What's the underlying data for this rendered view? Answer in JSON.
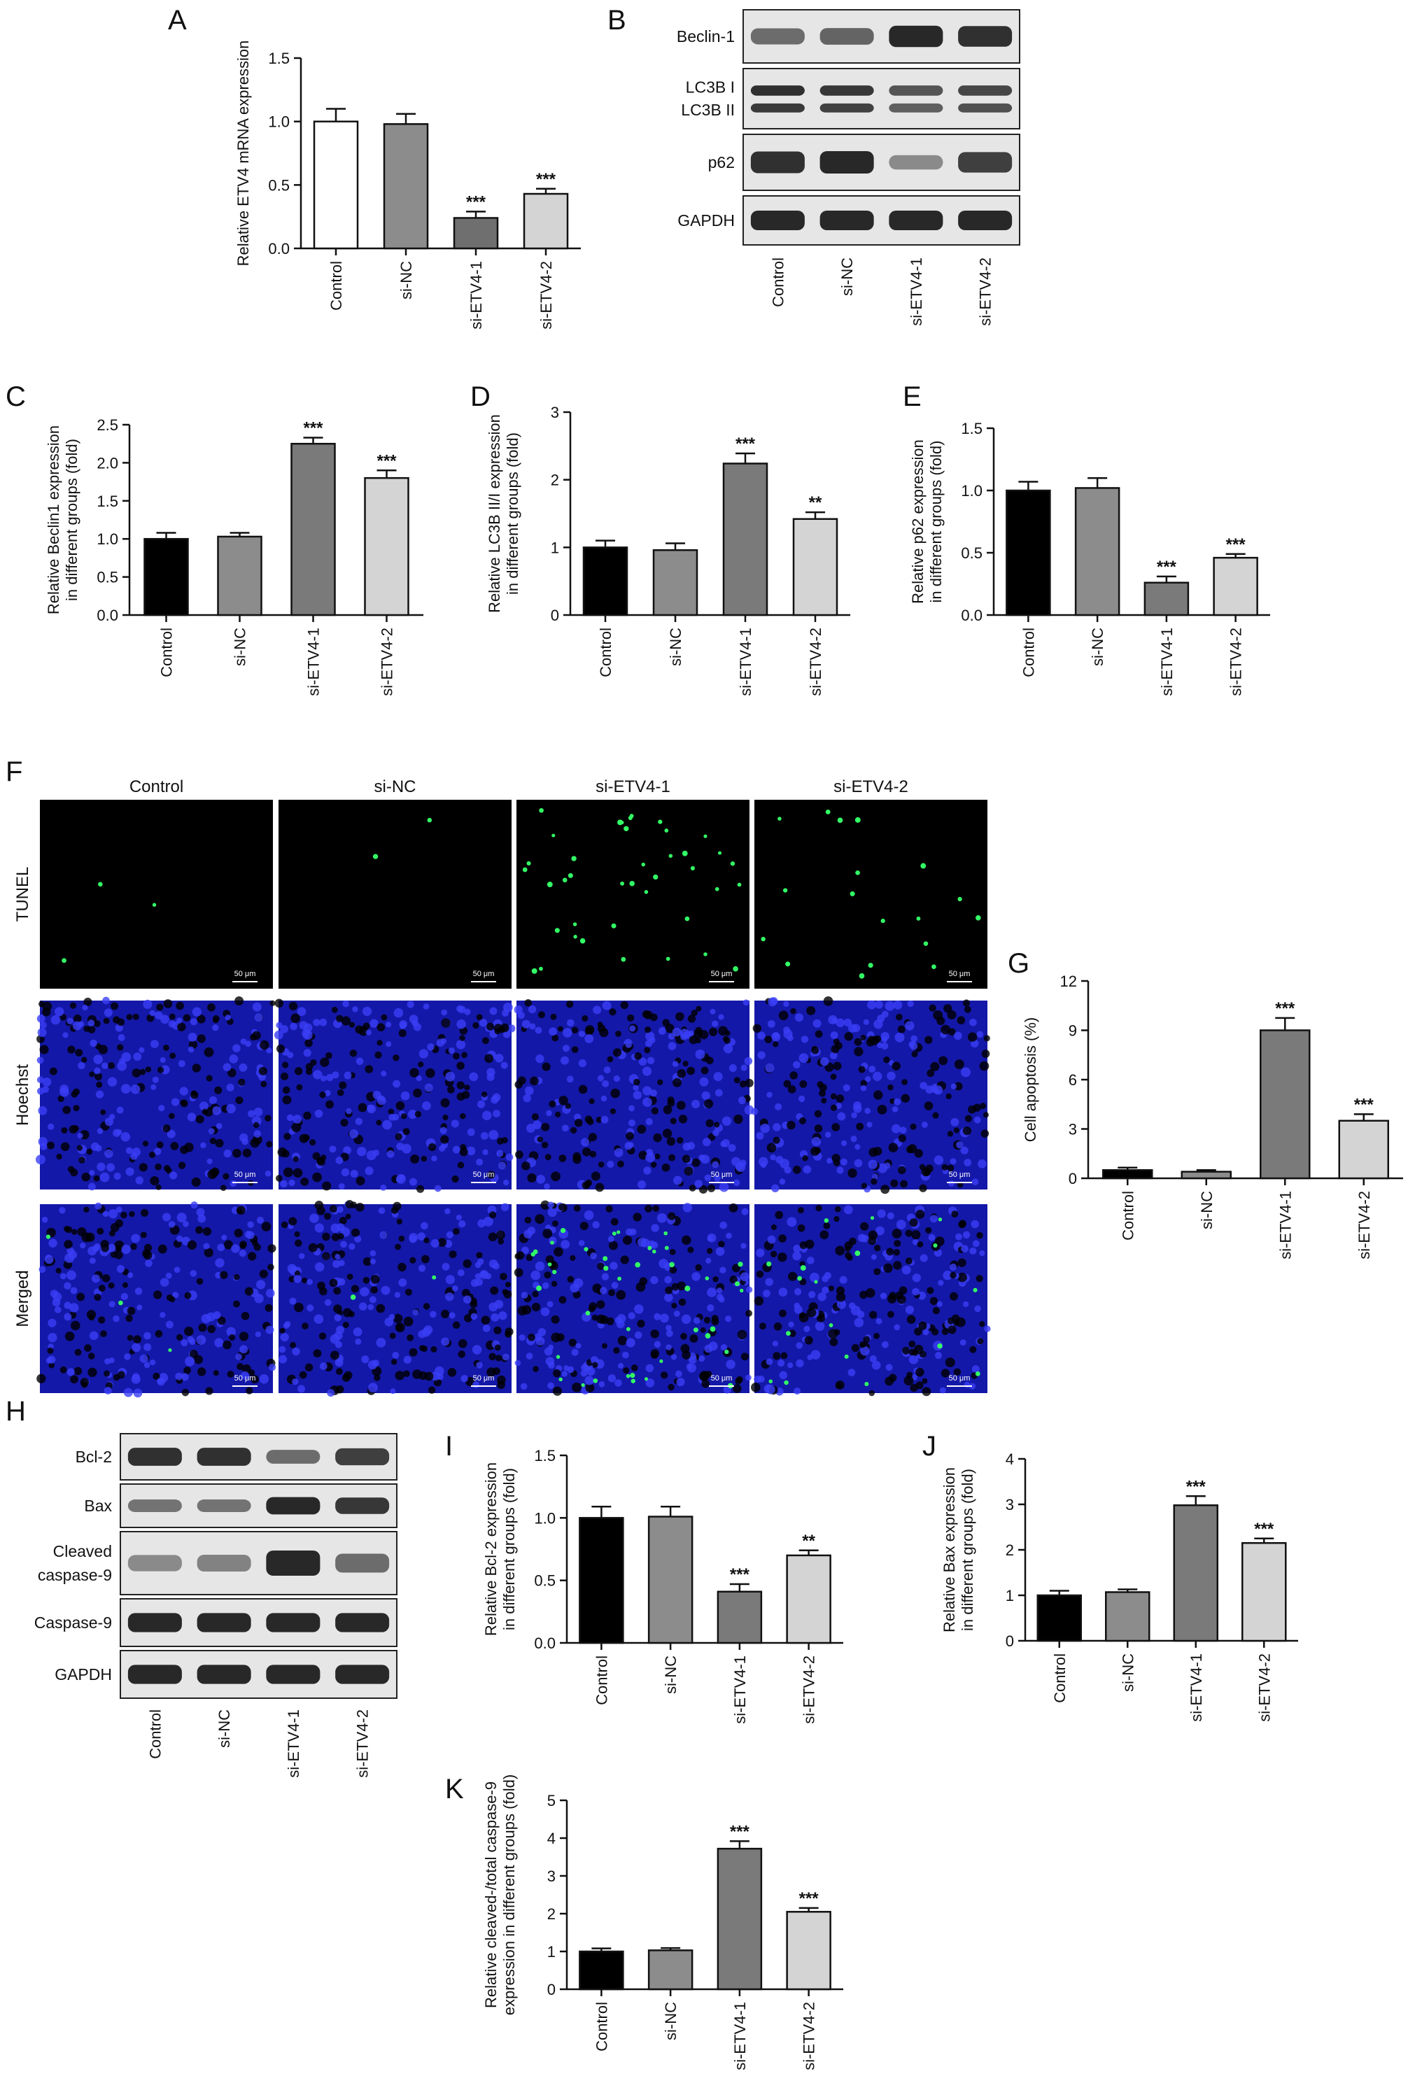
{
  "panel_letters": [
    "A",
    "B",
    "C",
    "D",
    "E",
    "F",
    "G",
    "H",
    "I",
    "J",
    "K"
  ],
  "groups": [
    "Control",
    "si-NC",
    "si-ETV4-1",
    "si-ETV4-2"
  ],
  "colors": {
    "white": "#ffffff",
    "light_gray": "#d4d4d4",
    "mid_gray": "#8c8c8c",
    "dark_gray": "#7a7a7a",
    "black": "#000000",
    "fluor_green": "#33ff66",
    "nuclei_blue": "#2a2fe8"
  },
  "chart_data": [
    {
      "panel": "A",
      "type": "bar",
      "categories": [
        "Control",
        "si-NC",
        "si-ETV4-1",
        "si-ETV4-2"
      ],
      "values": [
        1.0,
        0.98,
        0.24,
        0.43
      ],
      "errors": [
        0.1,
        0.08,
        0.05,
        0.04
      ],
      "significance": [
        "",
        "",
        "***",
        "***"
      ],
      "bar_colors": [
        "#ffffff",
        "#8c8c8c",
        "#6f6f6f",
        "#d4d4d4"
      ],
      "ylabel": "Relative ETV4 mRNA expression",
      "ylabel2": "",
      "ylim": [
        0,
        1.5
      ],
      "yticks": [
        "0.0",
        "0.5",
        "1.0",
        "1.5"
      ],
      "ytick_values": [
        0,
        0.5,
        1.0,
        1.5
      ]
    },
    {
      "panel": "C",
      "type": "bar",
      "categories": [
        "Control",
        "si-NC",
        "si-ETV4-1",
        "si-ETV4-2"
      ],
      "values": [
        1.0,
        1.03,
        2.25,
        1.8
      ],
      "errors": [
        0.08,
        0.05,
        0.08,
        0.1
      ],
      "significance": [
        "",
        "",
        "***",
        "***"
      ],
      "bar_colors": [
        "#000000",
        "#8c8c8c",
        "#7a7a7a",
        "#d4d4d4"
      ],
      "ylabel": "Relative Beclin1 expression",
      "ylabel2": "in different groups (fold)",
      "ylim": [
        0,
        2.5
      ],
      "yticks": [
        "0.0",
        "0.5",
        "1.0",
        "1.5",
        "2.0",
        "2.5"
      ],
      "ytick_values": [
        0,
        0.5,
        1.0,
        1.5,
        2.0,
        2.5
      ]
    },
    {
      "panel": "D",
      "type": "bar",
      "categories": [
        "Control",
        "si-NC",
        "si-ETV4-1",
        "si-ETV4-2"
      ],
      "values": [
        1.0,
        0.96,
        2.24,
        1.42
      ],
      "errors": [
        0.1,
        0.1,
        0.15,
        0.1
      ],
      "significance": [
        "",
        "",
        "***",
        "**"
      ],
      "bar_colors": [
        "#000000",
        "#8c8c8c",
        "#7a7a7a",
        "#d4d4d4"
      ],
      "ylabel": "Relative LC3B II/I expression",
      "ylabel2": "in different groups (fold)",
      "ylim": [
        0,
        3
      ],
      "yticks": [
        "0",
        "1",
        "2",
        "3"
      ],
      "ytick_values": [
        0,
        1,
        2,
        3
      ]
    },
    {
      "panel": "E",
      "type": "bar",
      "categories": [
        "Control",
        "si-NC",
        "si-ETV4-1",
        "si-ETV4-2"
      ],
      "values": [
        1.0,
        1.02,
        0.26,
        0.46
      ],
      "errors": [
        0.07,
        0.08,
        0.05,
        0.03
      ],
      "significance": [
        "",
        "",
        "***",
        "***"
      ],
      "bar_colors": [
        "#000000",
        "#8c8c8c",
        "#7a7a7a",
        "#d4d4d4"
      ],
      "ylabel": "Relative p62 expression",
      "ylabel2": "in different groups (fold)",
      "ylim": [
        0,
        1.5
      ],
      "yticks": [
        "0.0",
        "0.5",
        "1.0",
        "1.5"
      ],
      "ytick_values": [
        0,
        0.5,
        1.0,
        1.5
      ]
    },
    {
      "panel": "G",
      "type": "bar",
      "categories": [
        "Control",
        "si-NC",
        "si-ETV4-1",
        "si-ETV4-2"
      ],
      "values": [
        0.5,
        0.4,
        9.0,
        3.5
      ],
      "errors": [
        0.15,
        0.1,
        0.75,
        0.4
      ],
      "significance": [
        "",
        "",
        "***",
        "***"
      ],
      "bar_colors": [
        "#000000",
        "#8c8c8c",
        "#7a7a7a",
        "#d4d4d4"
      ],
      "ylabel": "Cell apoptosis (%)",
      "ylabel2": "",
      "ylim": [
        0,
        12
      ],
      "yticks": [
        "0",
        "3",
        "6",
        "9",
        "12"
      ],
      "ytick_values": [
        0,
        3,
        6,
        9,
        12
      ]
    },
    {
      "panel": "I",
      "type": "bar",
      "categories": [
        "Control",
        "si-NC",
        "si-ETV4-1",
        "si-ETV4-2"
      ],
      "values": [
        1.0,
        1.01,
        0.41,
        0.7
      ],
      "errors": [
        0.09,
        0.08,
        0.06,
        0.04
      ],
      "significance": [
        "",
        "",
        "***",
        "**"
      ],
      "bar_colors": [
        "#000000",
        "#8c8c8c",
        "#7a7a7a",
        "#d4d4d4"
      ],
      "ylabel": "Relative Bcl-2 expression",
      "ylabel2": "in different groups (fold)",
      "ylim": [
        0,
        1.5
      ],
      "yticks": [
        "0.0",
        "0.5",
        "1.0",
        "1.5"
      ],
      "ytick_values": [
        0,
        0.5,
        1.0,
        1.5
      ]
    },
    {
      "panel": "J",
      "type": "bar",
      "categories": [
        "Control",
        "si-NC",
        "si-ETV4-1",
        "si-ETV4-2"
      ],
      "values": [
        1.0,
        1.07,
        2.98,
        2.15
      ],
      "errors": [
        0.1,
        0.06,
        0.2,
        0.1
      ],
      "significance": [
        "",
        "",
        "***",
        "***"
      ],
      "bar_colors": [
        "#000000",
        "#8c8c8c",
        "#7a7a7a",
        "#d4d4d4"
      ],
      "ylabel": "Relative Bax expression",
      "ylabel2": "in different groups (fold)",
      "ylim": [
        0,
        4
      ],
      "yticks": [
        "0",
        "1",
        "2",
        "3",
        "4"
      ],
      "ytick_values": [
        0,
        1,
        2,
        3,
        4
      ]
    },
    {
      "panel": "K",
      "type": "bar",
      "categories": [
        "Control",
        "si-NC",
        "si-ETV4-1",
        "si-ETV4-2"
      ],
      "values": [
        1.0,
        1.03,
        3.72,
        2.05
      ],
      "errors": [
        0.08,
        0.06,
        0.2,
        0.1
      ],
      "significance": [
        "",
        "",
        "***",
        "***"
      ],
      "bar_colors": [
        "#000000",
        "#8c8c8c",
        "#7a7a7a",
        "#d4d4d4"
      ],
      "ylabel": "Relative cleaved-/total caspase-9",
      "ylabel2": "expression in different groups (fold)",
      "ylim": [
        0,
        5
      ],
      "yticks": [
        "0",
        "1",
        "2",
        "3",
        "4",
        "5"
      ],
      "ytick_values": [
        0,
        1,
        2,
        3,
        4,
        5
      ]
    }
  ],
  "blot_B": {
    "rows": [
      {
        "label": "Beclin-1",
        "intensity": [
          0.55,
          0.6,
          1.0,
          0.95
        ],
        "label2": ""
      },
      {
        "label": "LC3B I",
        "label2": "LC3B II",
        "intensity": [
          0.95,
          0.9,
          0.7,
          0.8
        ]
      },
      {
        "label": "p62",
        "intensity": [
          0.95,
          1.0,
          0.35,
          0.85
        ],
        "label2": ""
      },
      {
        "label": "GAPDH",
        "intensity": [
          1.0,
          1.0,
          1.0,
          1.0
        ],
        "label2": ""
      }
    ],
    "lanes": [
      "Control",
      "si-NC",
      "si-ETV4-1",
      "si-ETV4-2"
    ]
  },
  "blot_H": {
    "rows": [
      {
        "label": "Bcl-2",
        "label2": "",
        "intensity": [
          0.95,
          0.95,
          0.55,
          0.85
        ]
      },
      {
        "label": "Bax",
        "label2": "",
        "intensity": [
          0.5,
          0.5,
          1.0,
          0.9
        ]
      },
      {
        "label": "Cleaved",
        "label2": "caspase-9",
        "intensity": [
          0.35,
          0.4,
          1.0,
          0.55
        ]
      },
      {
        "label": "Caspase-9",
        "label2": "",
        "intensity": [
          1.0,
          1.0,
          1.0,
          1.0
        ]
      },
      {
        "label": "GAPDH",
        "label2": "",
        "intensity": [
          1.0,
          1.0,
          1.0,
          1.0
        ]
      }
    ],
    "lanes": [
      "Control",
      "si-NC",
      "si-ETV4-1",
      "si-ETV4-2"
    ]
  },
  "micro_F": {
    "columns": [
      "Control",
      "si-NC",
      "si-ETV4-1",
      "si-ETV4-2"
    ],
    "rows": [
      "TUNEL",
      "Hoechst",
      "Merged"
    ],
    "scale_bar": "50 μm",
    "tunel_counts": [
      3,
      2,
      40,
      18
    ]
  }
}
